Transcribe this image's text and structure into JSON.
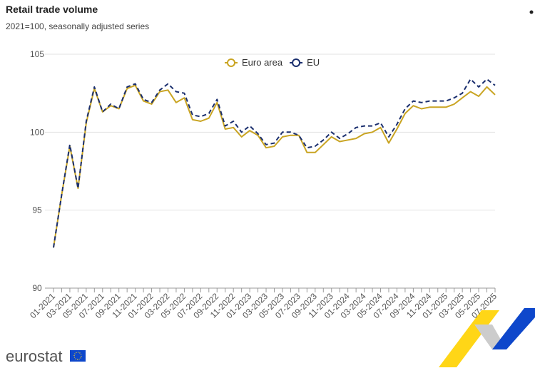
{
  "chart_data": {
    "type": "line",
    "title": "Retail trade volume",
    "subtitle": "2021=100, seasonally adjusted series",
    "logo": "eurostat",
    "categories": [
      "01-2021",
      null,
      "03-2021",
      null,
      "05-2021",
      null,
      "07-2021",
      null,
      "09-2021",
      null,
      "11-2021",
      null,
      "01-2022",
      null,
      "03-2022",
      null,
      "05-2022",
      null,
      "07-2022",
      null,
      "09-2022",
      null,
      "11-2022",
      null,
      "01-2023",
      null,
      "03-2023",
      null,
      "05-2023",
      null,
      "07-2023",
      null,
      "09-2023",
      null,
      "11-2023",
      null,
      "01-2024",
      null,
      "03-2024",
      null,
      "05-2024",
      null,
      "07-2024",
      null,
      "09-2024",
      null,
      "11-2024",
      null,
      "01-2025",
      null,
      "03-2025",
      null,
      "05-2025",
      null,
      "07-2025"
    ],
    "series": [
      {
        "name": "Euro area",
        "color": "#c9a422",
        "dash": false,
        "values": [
          92.6,
          96.0,
          99.1,
          96.4,
          100.6,
          102.8,
          101.3,
          101.7,
          101.5,
          102.8,
          103.0,
          102.0,
          101.8,
          102.6,
          102.7,
          101.9,
          102.2,
          100.8,
          100.7,
          100.9,
          101.9,
          100.2,
          100.3,
          99.7,
          100.1,
          99.8,
          99.0,
          99.1,
          99.7,
          99.8,
          99.8,
          98.7,
          98.7,
          99.2,
          99.7,
          99.4,
          99.5,
          99.6,
          99.9,
          100.0,
          100.3,
          99.3,
          100.2,
          101.2,
          101.7,
          101.5,
          101.6,
          101.6,
          101.6,
          101.8,
          102.2,
          102.6,
          102.3,
          102.9,
          102.4
        ]
      },
      {
        "name": "EU",
        "color": "#1b2f6e",
        "dash": true,
        "values": [
          92.6,
          96.0,
          99.2,
          96.4,
          100.7,
          102.9,
          101.3,
          101.8,
          101.5,
          102.9,
          103.1,
          102.1,
          101.9,
          102.7,
          103.1,
          102.6,
          102.5,
          101.1,
          101.0,
          101.2,
          102.1,
          100.4,
          100.7,
          100.0,
          100.4,
          99.9,
          99.2,
          99.3,
          100.0,
          100.0,
          99.8,
          99.0,
          99.1,
          99.5,
          100.0,
          99.6,
          99.9,
          100.3,
          100.4,
          100.4,
          100.6,
          99.7,
          100.5,
          101.5,
          102.0,
          101.9,
          102.0,
          102.0,
          102.0,
          102.2,
          102.5,
          103.4,
          102.9,
          103.4,
          103.0
        ]
      }
    ],
    "ylim": [
      90,
      105
    ],
    "yticks": [
      90,
      95,
      100,
      105
    ],
    "grid": true,
    "legend": "top"
  }
}
